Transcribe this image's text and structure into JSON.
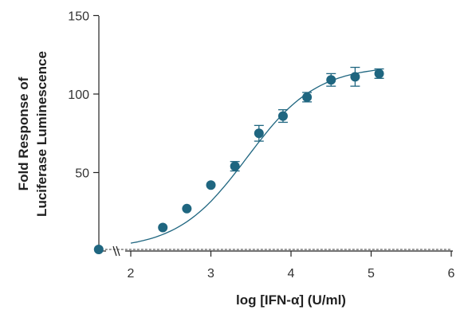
{
  "chart_data": {
    "type": "scatter",
    "title": "",
    "xlabel": "log [IFN-α] (U/ml)",
    "ylabel_lines": [
      "Fold Response of",
      "Luciferase Luminescence"
    ],
    "xlim": [
      1.6,
      6
    ],
    "ylim": [
      0,
      150
    ],
    "x_axis_break": true,
    "grid": false,
    "x_ticks": [
      2,
      3,
      4,
      5,
      6
    ],
    "x_tick_labels": [
      "2",
      "3",
      "4",
      "5",
      "6"
    ],
    "y_ticks": [
      50,
      100,
      150
    ],
    "y_tick_labels": [
      "50",
      "100",
      "150"
    ],
    "series": [
      {
        "x": [
          1.6,
          2.4,
          2.7,
          3.0,
          3.3,
          3.6,
          3.9,
          4.2,
          4.5,
          4.8,
          5.1
        ],
        "y": [
          1,
          15,
          27,
          42,
          54,
          75,
          86,
          98,
          109,
          111,
          113
        ],
        "error": [
          0,
          0,
          0,
          0,
          3,
          5,
          4,
          3,
          4,
          6,
          3
        ]
      }
    ],
    "baseline_y": 1,
    "fit": {
      "type": "four-parameter-logistic",
      "bottom": 1,
      "top": 118,
      "log_ec50": 3.45,
      "hill": 1.0,
      "x_range": [
        2.0,
        5.1
      ]
    },
    "colors": {
      "marker": "#1f6680",
      "fit": "#1f6680",
      "axis": "#222222",
      "baseline": "#333333"
    }
  }
}
